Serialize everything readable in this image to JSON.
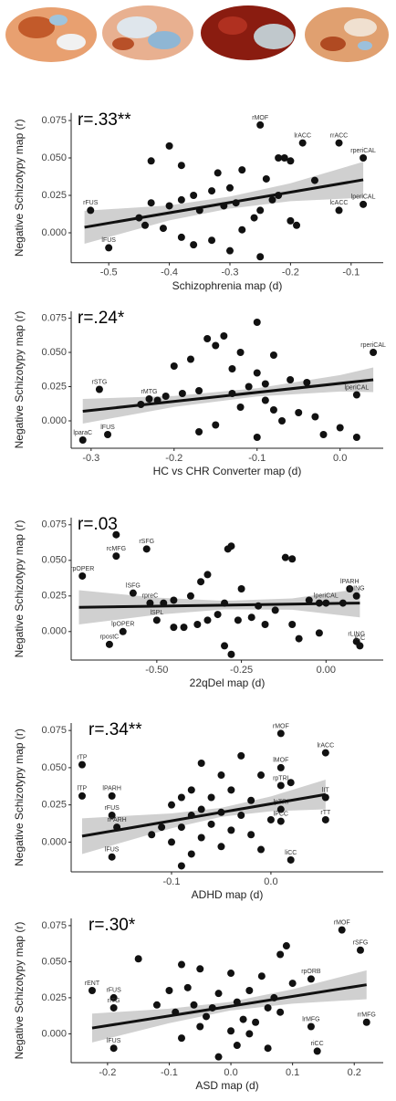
{
  "chart_data": [
    {
      "type": "scatter",
      "annotation": "r=.33**",
      "xlabel": "Schizophrenia map (d)",
      "ylabel": "Negative Schizotypy map (r)",
      "xlim": [
        -0.562,
        -0.047
      ],
      "ylim": [
        -0.02,
        0.08
      ],
      "xticks": [
        -0.5,
        -0.4,
        -0.3,
        -0.2,
        -0.1
      ],
      "yticks": [
        {
          "value": 0,
          "label": "0.000"
        },
        {
          "value": 0.025,
          "label": "0.025"
        },
        {
          "value": 0.05,
          "label": "0.050"
        },
        {
          "value": 0.075,
          "label": "0.075"
        }
      ],
      "series": [
        {
          "color": "#111111",
          "x": [
            -0.4,
            -0.43,
            -0.38,
            -0.32,
            -0.28,
            -0.22,
            -0.21,
            -0.2,
            -0.24,
            -0.3,
            -0.33,
            -0.36,
            -0.38,
            -0.4,
            -0.43,
            -0.45,
            -0.44,
            -0.41,
            -0.38,
            -0.36,
            -0.33,
            -0.3,
            -0.28,
            -0.26,
            -0.25,
            -0.23,
            -0.22,
            -0.2,
            -0.19,
            -0.25,
            -0.16,
            -0.35,
            -0.31,
            -0.29
          ],
          "values": [
            0.058,
            0.048,
            0.045,
            0.04,
            0.042,
            0.05,
            0.05,
            0.048,
            0.036,
            0.03,
            0.028,
            0.025,
            0.022,
            0.018,
            0.02,
            0.01,
            0.005,
            0.003,
            -0.003,
            -0.008,
            -0.005,
            -0.012,
            0.002,
            0.01,
            0.015,
            0.022,
            0.025,
            0.008,
            0.005,
            -0.016,
            0.035,
            0.015,
            0.018,
            0.02
          ]
        },
        {
          "color": "#111111",
          "x": [
            -0.25,
            -0.18,
            -0.12,
            -0.08,
            -0.53,
            -0.5,
            -0.08,
            -0.12
          ],
          "values": [
            0.072,
            0.06,
            0.06,
            0.05,
            0.015,
            -0.01,
            0.019,
            0.015
          ],
          "labels": [
            "rMOF",
            "lrACC",
            "rrACC",
            "rperiCAL",
            "rFUS",
            "lFUS",
            "lperiCAL",
            "lcACC"
          ]
        }
      ],
      "fit": {
        "color": "#111111",
        "x": [
          -0.54,
          -0.08
        ],
        "values": [
          0.0037,
          0.0354
        ]
      },
      "band": {
        "color": "#c4c4c4",
        "x": [
          -0.54,
          -0.4,
          -0.3,
          -0.2,
          -0.08
        ],
        "lower": [
          -0.0073,
          0.0083,
          0.0162,
          0.0211,
          0.0234
        ],
        "upper": [
          0.0147,
          0.0183,
          0.0242,
          0.0331,
          0.0474
        ]
      }
    },
    {
      "type": "scatter",
      "annotation": "r=.24*",
      "xlabel": "HC vs CHR Converter map (d)",
      "ylabel": "Negative Schizotypy map (r)",
      "xlim": [
        -0.324,
        0.052
      ],
      "ylim": [
        -0.02,
        0.08
      ],
      "xticks": [
        -0.3,
        -0.2,
        -0.1,
        {
          "value": 0,
          "label": "0.0"
        }
      ],
      "yticks": [
        {
          "value": 0,
          "label": "0.000"
        },
        {
          "value": 0.025,
          "label": "0.025"
        },
        {
          "value": 0.05,
          "label": "0.050"
        },
        {
          "value": 0.075,
          "label": "0.075"
        }
      ],
      "series": [
        {
          "color": "#111111",
          "x": [
            -0.1,
            -0.16,
            -0.14,
            -0.15,
            -0.12,
            -0.08,
            -0.18,
            -0.2,
            -0.13,
            -0.1,
            -0.06,
            -0.04,
            -0.09,
            -0.11,
            -0.17,
            -0.19,
            -0.21,
            -0.22,
            -0.24,
            -0.12,
            -0.08,
            -0.05,
            -0.03,
            -0.07,
            -0.15,
            -0.17,
            -0.1,
            -0.02,
            0.02,
            0.0,
            -0.13,
            -0.09
          ],
          "values": [
            0.072,
            0.06,
            0.062,
            0.055,
            0.05,
            0.048,
            0.045,
            0.04,
            0.038,
            0.035,
            0.03,
            0.028,
            0.027,
            0.025,
            0.022,
            0.02,
            0.018,
            0.015,
            0.012,
            0.01,
            0.008,
            0.006,
            0.003,
            0.0,
            -0.003,
            -0.008,
            -0.012,
            -0.01,
            -0.012,
            -0.005,
            0.02,
            0.015
          ]
        },
        {
          "color": "#111111",
          "x": [
            0.04,
            -0.29,
            -0.23,
            -0.28,
            -0.31,
            0.02
          ],
          "values": [
            0.05,
            0.023,
            0.016,
            -0.01,
            -0.014,
            0.019
          ],
          "labels": [
            "rperiCAL",
            "rSTG",
            "rMTG",
            "lFUS",
            "lparaC",
            "lperiCAL"
          ]
        }
      ],
      "fit": {
        "color": "#111111",
        "x": [
          -0.31,
          0.04
        ],
        "values": [
          0.007,
          0.03
        ]
      },
      "band": {
        "color": "#c4c4c4",
        "x": [
          -0.31,
          -0.2,
          -0.1,
          0.0,
          0.04
        ],
        "lower": [
          -0.002,
          0.0102,
          0.0178,
          0.0214,
          0.021
        ],
        "upper": [
          0.016,
          0.0182,
          0.0238,
          0.0334,
          0.039
        ]
      }
    },
    {
      "type": "scatter",
      "annotation": "r=.03",
      "xlabel": "22qDel map (d)",
      "ylabel": "Negative Schizotypy map (r)",
      "xlim": [
        -0.753,
        0.169
      ],
      "ylim": [
        -0.02,
        0.08
      ],
      "xticks": [
        {
          "value": -0.5,
          "label": "-0.50"
        },
        {
          "value": -0.25,
          "label": "-0.25"
        },
        {
          "value": 0,
          "label": "0.00"
        }
      ],
      "yticks": [
        {
          "value": 0,
          "label": "0.000"
        },
        {
          "value": 0.025,
          "label": "0.025"
        },
        {
          "value": 0.05,
          "label": "0.050"
        },
        {
          "value": 0.075,
          "label": "0.075"
        }
      ],
      "series": [
        {
          "color": "#111111",
          "x": [
            -0.62,
            -0.28,
            -0.29,
            -0.12,
            -0.1,
            -0.35,
            -0.37,
            -0.25,
            -0.4,
            -0.45,
            -0.48,
            -0.3,
            -0.2,
            -0.15,
            -0.05,
            -0.02,
            -0.32,
            -0.35,
            -0.38,
            -0.42,
            -0.26,
            -0.22,
            -0.18,
            -0.1,
            -0.08,
            -0.3,
            -0.28,
            -0.45,
            -0.02,
            0.05
          ],
          "values": [
            0.068,
            0.06,
            0.058,
            0.052,
            0.051,
            0.04,
            0.035,
            0.03,
            0.025,
            0.022,
            0.02,
            0.02,
            0.018,
            0.015,
            0.022,
            0.02,
            0.012,
            0.008,
            0.005,
            0.003,
            0.008,
            0.01,
            0.005,
            0.005,
            -0.005,
            -0.01,
            -0.016,
            0.003,
            -0.001,
            0.02
          ]
        },
        {
          "color": "#111111",
          "x": [
            -0.62,
            -0.53,
            -0.72,
            -0.57,
            -0.52,
            -0.5,
            -0.6,
            -0.64,
            0.07,
            0.09,
            0.0,
            0.09,
            0.1
          ],
          "values": [
            0.053,
            0.058,
            0.039,
            0.027,
            0.02,
            0.008,
            0.0,
            -0.009,
            0.03,
            0.025,
            0.02,
            -0.007,
            -0.01
          ],
          "labels": [
            "rcMFG",
            "rSFG",
            "rpOPER",
            "lSFG",
            "rpreC",
            "lSPL",
            "lpOPER",
            "rpostC",
            "lPARH",
            "lLING",
            "lperiCAL",
            "rLING",
            "lCC"
          ]
        }
      ],
      "fit": {
        "color": "#111111",
        "x": [
          -0.73,
          0.1
        ],
        "values": [
          0.017,
          0.02
        ]
      },
      "band": {
        "color": "#c4c4c4",
        "x": [
          -0.73,
          -0.5,
          -0.3,
          -0.1,
          0.1
        ],
        "lower": [
          0.005,
          0.0118,
          0.0156,
          0.0153,
          0.01
        ],
        "upper": [
          0.029,
          0.0238,
          0.0216,
          0.0233,
          0.03
        ]
      }
    },
    {
      "type": "scatter",
      "annotation": "r=.34**",
      "xlabel": "ADHD map (d)",
      "ylabel": "Negative Schizotypy map (r)",
      "xlim": [
        -0.201,
        0.113
      ],
      "ylim": [
        -0.02,
        0.08
      ],
      "xticks": [
        -0.1,
        {
          "value": 0,
          "label": "0.0"
        }
      ],
      "yticks": [
        {
          "value": 0,
          "label": "0.000"
        },
        {
          "value": 0.025,
          "label": "0.025"
        },
        {
          "value": 0.05,
          "label": "0.050"
        },
        {
          "value": 0.075,
          "label": "0.075"
        }
      ],
      "series": [
        {
          "color": "#111111",
          "x": [
            -0.07,
            -0.03,
            -0.01,
            -0.05,
            -0.08,
            -0.04,
            -0.09,
            -0.06,
            -0.02,
            -0.1,
            -0.07,
            -0.05,
            -0.08,
            -0.03,
            0.0,
            -0.06,
            -0.09,
            -0.04,
            -0.02,
            -0.07,
            -0.1,
            -0.05,
            -0.01,
            -0.08,
            -0.09,
            0.02,
            -0.12,
            -0.11
          ],
          "values": [
            0.053,
            0.058,
            0.045,
            0.045,
            0.035,
            0.035,
            0.03,
            0.03,
            0.028,
            0.025,
            0.022,
            0.02,
            0.018,
            0.018,
            0.015,
            0.012,
            0.01,
            0.008,
            0.005,
            0.003,
            0.0,
            -0.003,
            -0.005,
            -0.008,
            -0.016,
            0.04,
            0.005,
            0.01
          ]
        },
        {
          "color": "#111111",
          "x": [
            0.01,
            0.055,
            0.01,
            -0.19,
            -0.19,
            -0.16,
            0.01,
            0.055,
            0.01,
            0.055,
            0.01,
            0.02,
            -0.16,
            -0.155,
            -0.16
          ],
          "values": [
            0.073,
            0.06,
            0.05,
            0.052,
            0.031,
            0.031,
            0.038,
            0.03,
            0.022,
            0.015,
            0.014,
            -0.012,
            0.018,
            0.01,
            -0.01
          ],
          "labels": [
            "rMOF",
            "lrACC",
            "lMOF",
            "rTP",
            "lTP",
            "lPARH",
            "rpTRI",
            "lIT",
            "lpTRI",
            "rTT",
            "lPCC",
            "liCC",
            "rFUS",
            "rPARH",
            "lFUS"
          ]
        }
      ],
      "fit": {
        "color": "#111111",
        "x": [
          -0.19,
          0.055
        ],
        "values": [
          0.004,
          0.032
        ]
      },
      "band": {
        "color": "#c4c4c4",
        "x": [
          -0.19,
          -0.1,
          -0.05,
          0.0,
          0.055
        ],
        "lower": [
          -0.008,
          0.0093,
          0.017,
          0.0207,
          0.022
        ],
        "upper": [
          0.016,
          0.0193,
          0.023,
          0.0307,
          0.042
        ]
      }
    },
    {
      "type": "scatter",
      "annotation": "r=.30*",
      "xlabel": "ASD map (d)",
      "ylabel": "Negative Schizotypy map (r)",
      "xlim": [
        -0.259,
        0.247
      ],
      "ylim": [
        -0.02,
        0.08
      ],
      "xticks": [
        -0.2,
        -0.1,
        {
          "value": 0,
          "label": "0.0"
        },
        0.1,
        0.2
      ],
      "yticks": [
        {
          "value": 0,
          "label": "0.000"
        },
        {
          "value": 0.025,
          "label": "0.025"
        },
        {
          "value": 0.05,
          "label": "0.050"
        },
        {
          "value": 0.075,
          "label": "0.075"
        }
      ],
      "series": [
        {
          "color": "#111111",
          "x": [
            -0.15,
            0.09,
            0.08,
            -0.08,
            -0.05,
            0.0,
            0.05,
            0.1,
            -0.1,
            -0.07,
            -0.02,
            0.03,
            0.07,
            -0.12,
            -0.06,
            -0.03,
            0.01,
            0.06,
            -0.09,
            -0.04,
            0.02,
            0.04,
            0.08,
            -0.05,
            0.0,
            0.03,
            -0.08,
            0.01,
            0.06,
            -0.02
          ],
          "values": [
            0.052,
            0.061,
            0.055,
            0.048,
            0.045,
            0.042,
            0.04,
            0.035,
            0.03,
            0.032,
            0.028,
            0.03,
            0.025,
            0.02,
            0.02,
            0.018,
            0.022,
            0.018,
            0.015,
            0.012,
            0.01,
            0.008,
            0.015,
            0.005,
            0.002,
            0.0,
            -0.003,
            -0.008,
            -0.01,
            -0.016
          ]
        },
        {
          "color": "#111111",
          "x": [
            0.18,
            0.21,
            0.13,
            -0.225,
            -0.19,
            -0.19,
            -0.19,
            0.13,
            0.22,
            0.14
          ],
          "values": [
            0.072,
            0.058,
            0.038,
            0.03,
            0.025,
            0.018,
            -0.01,
            0.005,
            0.008,
            -0.012
          ],
          "labels": [
            "rMOF",
            "rSFG",
            "rpORB",
            "rENT",
            "rFUS",
            "rITG",
            "lFUS",
            "lrMFG",
            "rrMFG",
            "riCC"
          ]
        }
      ],
      "fit": {
        "color": "#111111",
        "x": [
          -0.225,
          0.22
        ],
        "values": [
          0.004,
          0.034
        ]
      },
      "band": {
        "color": "#c4c4c4",
        "x": [
          -0.225,
          -0.1,
          0.0,
          0.1,
          0.22
        ],
        "lower": [
          -0.006,
          0.0074,
          0.0162,
          0.0209,
          0.024
        ],
        "upper": [
          0.014,
          0.0174,
          0.0222,
          0.0309,
          0.044
        ]
      }
    }
  ]
}
